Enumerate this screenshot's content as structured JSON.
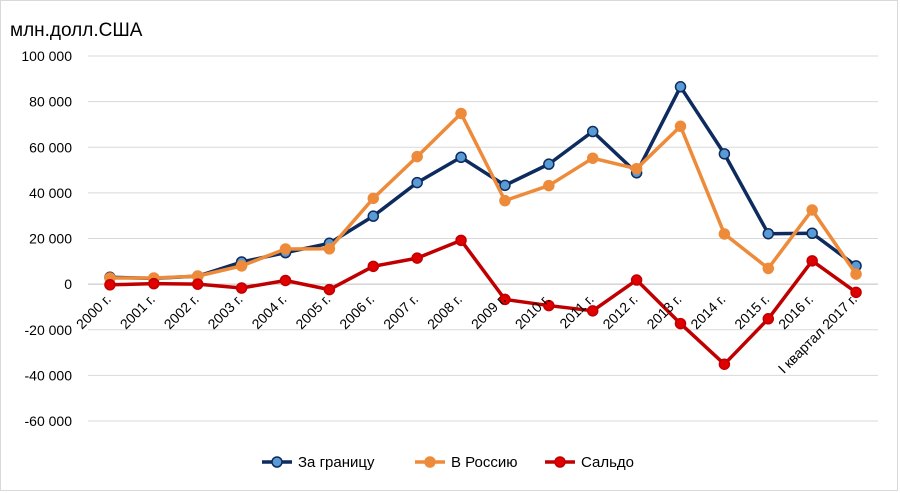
{
  "unit_label": "млн.долл.США",
  "chart_data": {
    "type": "line",
    "title": "",
    "ylabel": "млн.долл.США",
    "xlabel": "",
    "ylim": [
      -60000,
      100000
    ],
    "ytick_step": 20000,
    "ytick_labels": [
      "-60 000",
      "-40 000",
      "-20 000",
      "0",
      "20 000",
      "40 000",
      "60 000",
      "80 000",
      "100 000"
    ],
    "grid": true,
    "legend_position": "bottom",
    "categories": [
      "2000 г.",
      "2001 г.",
      "2002 г.",
      "2003 г.",
      "2004 г.",
      "2005 г.",
      "2006 г.",
      "2007 г.",
      "2008 г.",
      "2009 г.",
      "2010 г.",
      "2011 г.",
      "2012 г.",
      "2013 г.",
      "2014 г.",
      "2015 г.",
      "2016 г.",
      "I квартал 2017 г."
    ],
    "series": [
      {
        "name": "За границу",
        "color": "#0d2b5e",
        "marker_fill": "#5b9bd5",
        "values": [
          3000,
          2500,
          3500,
          9700,
          13800,
          17900,
          29800,
          44500,
          55600,
          43300,
          52600,
          66900,
          48800,
          86500,
          57100,
          22100,
          22300,
          8000
        ]
      },
      {
        "name": "В Россию",
        "color": "#ed8b3a",
        "marker_fill": "#ed8b3a",
        "values": [
          2700,
          2700,
          3500,
          8000,
          15400,
          15500,
          37600,
          55900,
          74800,
          36600,
          43200,
          55200,
          50600,
          69200,
          22000,
          6900,
          32500,
          4400
        ]
      },
      {
        "name": "Сальдо",
        "color": "#c00000",
        "marker_fill": "#e00000",
        "values": [
          -300,
          200,
          0,
          -1700,
          1600,
          -2400,
          7800,
          11400,
          19200,
          -6700,
          -9400,
          -11700,
          1800,
          -17300,
          -35100,
          -15200,
          10200,
          -3600
        ]
      }
    ]
  }
}
